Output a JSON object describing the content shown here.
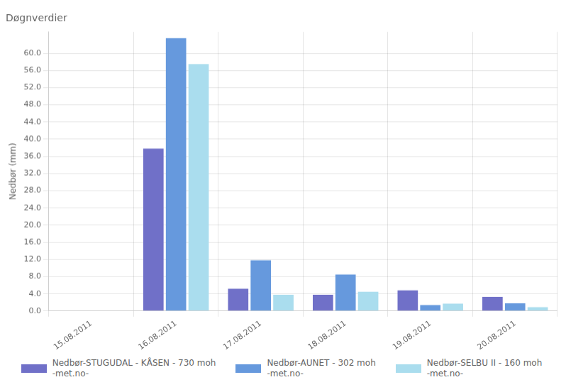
{
  "chart_data": {
    "type": "bar",
    "title": "Døgnverdier",
    "ylabel": "Nedbør (mm)",
    "categories": [
      "15.08.2011",
      "16.08.2011",
      "17.08.2011",
      "18.08.2011",
      "19.08.2011",
      "20.08.2011"
    ],
    "series": [
      {
        "name": "Nedbør-STUGUDAL - KÅSEN - 730 moh\n-met.no-",
        "color": "#7070c8",
        "values": [
          0.0,
          37.8,
          5.2,
          3.8,
          4.8,
          3.3
        ]
      },
      {
        "name": "Nedbør-AUNET - 302 moh\n-met.no-",
        "color": "#6699dd",
        "values": [
          0.1,
          63.5,
          11.8,
          8.5,
          1.4,
          1.8
        ]
      },
      {
        "name": "Nedbør-SELBU II - 160 moh\n-met.no-",
        "color": "#aaddee",
        "values": [
          0.0,
          57.5,
          3.8,
          4.5,
          1.7,
          0.9
        ]
      }
    ],
    "ylim": [
      0,
      65
    ],
    "yticks": [
      {
        "value": 0,
        "label": "0.0"
      },
      {
        "value": 4,
        "label": "4.0"
      },
      {
        "value": 8,
        "label": "8.0"
      },
      {
        "value": 12,
        "label": "12.0"
      },
      {
        "value": 16,
        "label": "16.0"
      },
      {
        "value": 20,
        "label": "20.0"
      },
      {
        "value": 24,
        "label": "24.0"
      },
      {
        "value": 28,
        "label": "28.0"
      },
      {
        "value": 32,
        "label": "32.0"
      },
      {
        "value": 36,
        "label": "36.0"
      },
      {
        "value": 40,
        "label": "40.0"
      },
      {
        "value": 44,
        "label": "44.0"
      },
      {
        "value": 48,
        "label": "48.0"
      },
      {
        "value": 52,
        "label": "52.0"
      },
      {
        "value": 56,
        "label": "56.0"
      },
      {
        "value": 60,
        "label": "60.0"
      }
    ],
    "grid": true,
    "legend": "bottom"
  }
}
